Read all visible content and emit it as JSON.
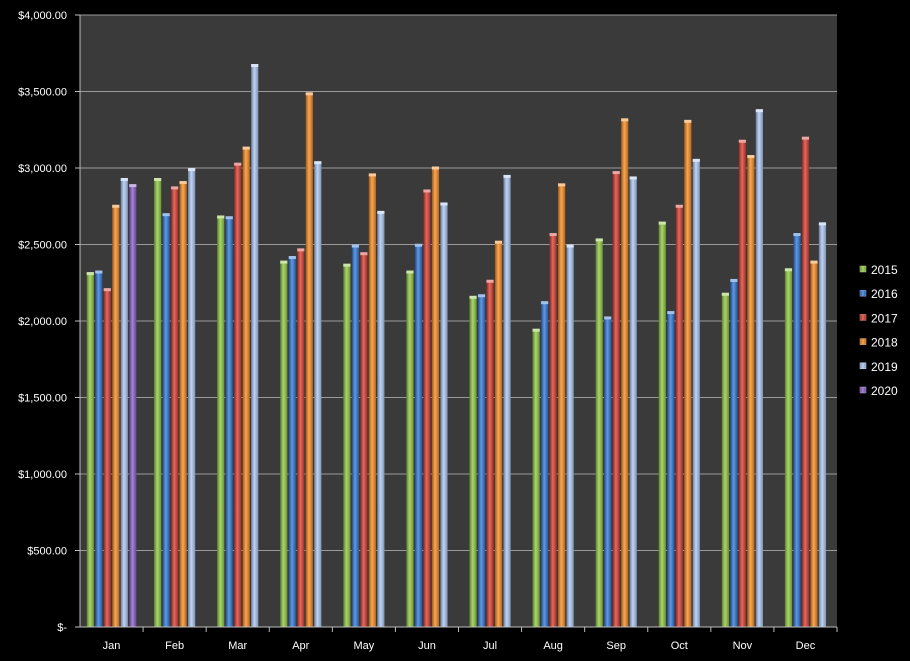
{
  "chart_data": {
    "type": "bar",
    "categories": [
      "Jan",
      "Feb",
      "Mar",
      "Apr",
      "May",
      "Jun",
      "Jul",
      "Aug",
      "Sep",
      "Oct",
      "Nov",
      "Dec"
    ],
    "series": [
      {
        "name": "2015",
        "color": "#8dc63f",
        "values": [
          2310,
          2925,
          2680,
          2385,
          2365,
          2320,
          2155,
          1940,
          2530,
          2640,
          2175,
          2335
        ]
      },
      {
        "name": "2016",
        "color": "#2e75d6",
        "values": [
          2320,
          2695,
          2675,
          2415,
          2490,
          2495,
          2165,
          2120,
          2020,
          2055,
          2265,
          2565
        ]
      },
      {
        "name": "2017",
        "color": "#d63a2e",
        "values": [
          2205,
          2870,
          3025,
          2465,
          2440,
          2850,
          2260,
          2565,
          2970,
          2750,
          3175,
          3195
        ]
      },
      {
        "name": "2018",
        "color": "#f5891f",
        "values": [
          2750,
          2905,
          3130,
          3485,
          2955,
          3000,
          2515,
          2890,
          3315,
          3305,
          3075,
          2385
        ]
      },
      {
        "name": "2019",
        "color": "#a9c4f0",
        "values": [
          2925,
          2990,
          3670,
          3035,
          2710,
          2765,
          2945,
          2490,
          2935,
          3050,
          3375,
          2635
        ]
      },
      {
        "name": "2020",
        "color": "#8a5cc7",
        "values": [
          2885,
          null,
          null,
          null,
          null,
          null,
          null,
          null,
          null,
          null,
          null,
          null
        ]
      }
    ],
    "yticks": [
      "$-",
      "$500.00",
      "$1,000.00",
      "$1,500.00",
      "$2,000.00",
      "$2,500.00",
      "$3,000.00",
      "$3,500.00",
      "$4,000.00"
    ],
    "ylim": [
      0,
      4000
    ],
    "grid": true,
    "legend_position": "right"
  }
}
